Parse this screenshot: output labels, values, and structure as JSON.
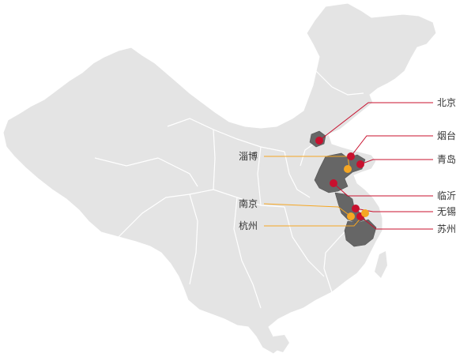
{
  "map": {
    "colors": {
      "land": "#e4e4e4",
      "border": "#ffffff",
      "highlight": "#666666",
      "red": "#c8102e",
      "orange": "#f5a623"
    },
    "cities_right": [
      {
        "name": "北京",
        "color": "red"
      },
      {
        "name": "烟台",
        "color": "red"
      },
      {
        "name": "青岛",
        "color": "red"
      },
      {
        "name": "临沂",
        "color": "red"
      },
      {
        "name": "无锡",
        "color": "red"
      },
      {
        "name": "苏州",
        "color": "red"
      }
    ],
    "cities_left": [
      {
        "name": "淄博",
        "color": "orange"
      },
      {
        "name": "南京",
        "color": "orange"
      },
      {
        "name": "杭州",
        "color": "orange"
      }
    ]
  }
}
